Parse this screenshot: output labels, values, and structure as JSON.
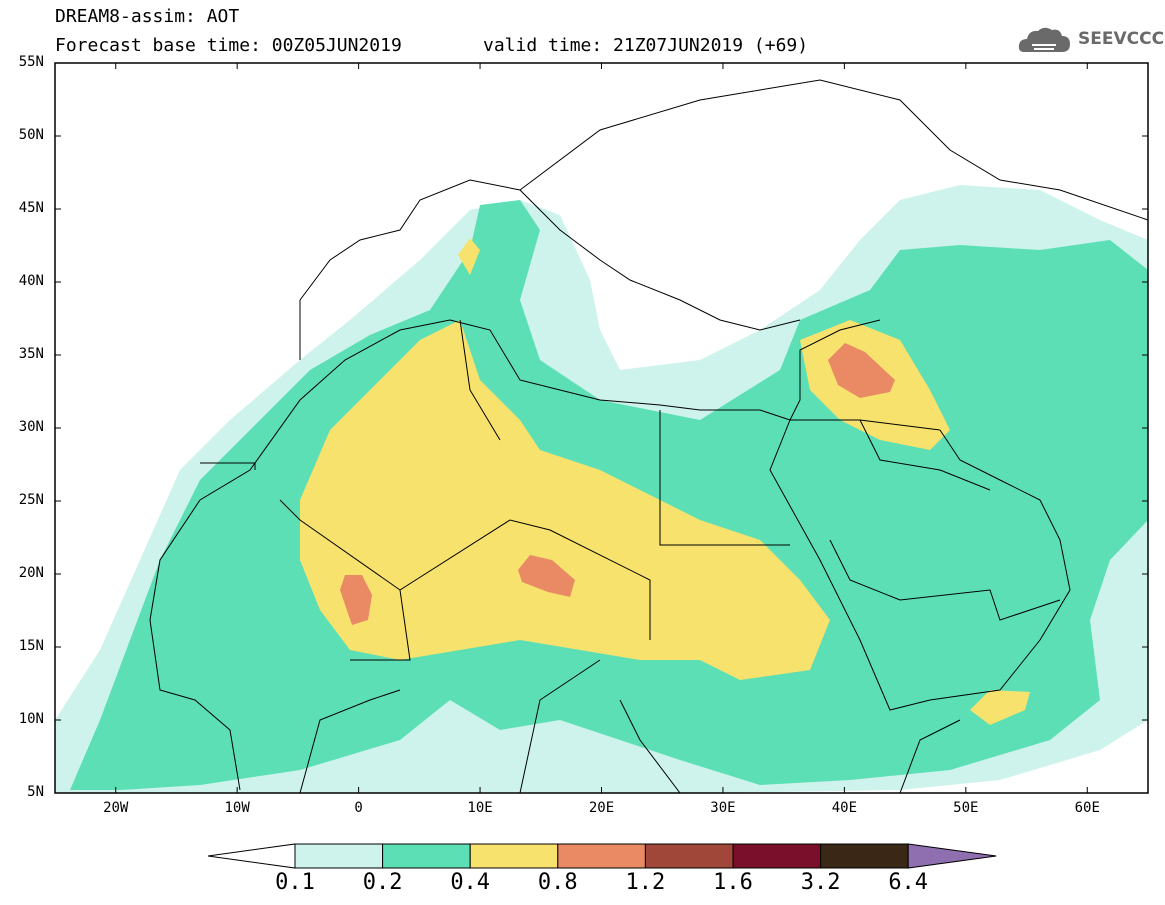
{
  "header": {
    "title": "DREAM8-assim: AOT",
    "base_time": "Forecast base time: 00Z05JUN2019",
    "valid_time": "valid time: 21Z07JUN2019 (+69)",
    "logo_text": "SEEVCCC"
  },
  "map": {
    "lat_labels": [
      "55N",
      "50N",
      "45N",
      "40N",
      "35N",
      "30N",
      "25N",
      "20N",
      "15N",
      "10N",
      "5N"
    ],
    "lon_labels": [
      "20W",
      "10W",
      "0",
      "10E",
      "20E",
      "30E",
      "40E",
      "50E",
      "60E"
    ],
    "extent": {
      "lon_min": -25,
      "lon_max": 65,
      "lat_min": 5,
      "lat_max": 55
    }
  },
  "legend": {
    "levels": [
      "0.1",
      "0.2",
      "0.4",
      "0.8",
      "1.2",
      "1.6",
      "3.2",
      "6.4"
    ],
    "colors": [
      "#cdf3ec",
      "#5cdfb4",
      "#f7e26e",
      "#ea8a64",
      "#a0473a",
      "#7a0f2c",
      "#3b2716",
      "#8f6fb0"
    ]
  }
}
